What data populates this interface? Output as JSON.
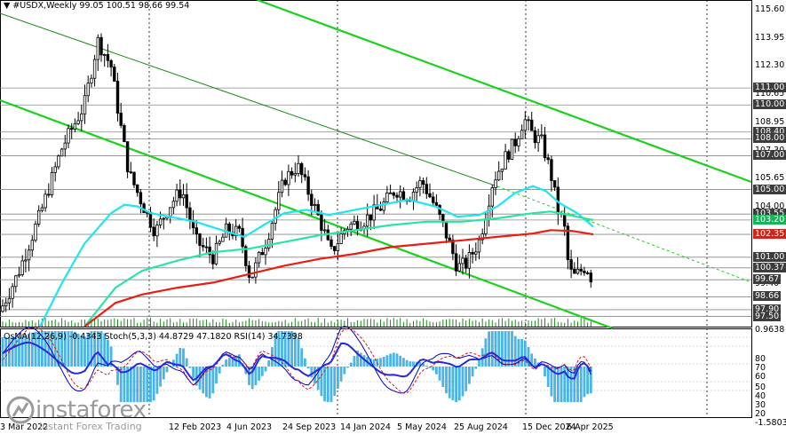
{
  "header": {
    "symbol_line": "▼ #USDX,Weekly  99.05 100.51 98.66 99.54"
  },
  "price_axis": {
    "labels": [
      "115.60",
      "113.95",
      "112.30",
      "110.65",
      "108.95",
      "107.30",
      "105.65",
      "104.00",
      "99.40"
    ],
    "levels": [
      {
        "value": "111.00",
        "style": "dark"
      },
      {
        "value": "110.00",
        "style": "dark"
      },
      {
        "value": "108.40",
        "style": "dark"
      },
      {
        "value": "108.00",
        "style": "dark"
      },
      {
        "value": "107.00",
        "style": "dark"
      },
      {
        "value": "105.00",
        "style": "dark"
      },
      {
        "value": "103.55",
        "style": "dark"
      },
      {
        "value": "103.20",
        "style": "grn"
      },
      {
        "value": "102.35",
        "style": "red"
      },
      {
        "value": "101.00",
        "style": "dark"
      },
      {
        "value": "100.37",
        "style": "dark"
      },
      {
        "value": "99.67",
        "style": "dark"
      },
      {
        "value": "98.66",
        "style": "dark"
      },
      {
        "value": "97.90",
        "style": "dark"
      },
      {
        "value": "97.50",
        "style": "dark"
      }
    ]
  },
  "time_axis": {
    "labels": [
      "13 Mar 2022",
      "12 Feb 2023",
      "4 Jun 2023",
      "24 Sep 2023",
      "14 Jan 2024",
      "5 May 2024",
      "25 Aug 2024",
      "15 Dec 2024",
      "6 Apr 2025"
    ]
  },
  "oscillator": {
    "title": "OsMA(12,26,9) -0.4343  Stoch(5,3,3) 44.8729 47.1820  RSI(14) 34.7398",
    "axis_labels": [
      "0.9638",
      "80",
      "70",
      "60",
      "50",
      "40",
      "30",
      "20",
      "-1.5803"
    ]
  },
  "logo": {
    "brand": "instaforex",
    "tagline": "Instant Forex Trading"
  },
  "colors": {
    "candle": "#000000",
    "trend_line": "#19d219",
    "ma_cyan": "#1ee6f0",
    "ma_green": "#28e6a0",
    "ma_red": "#e61e14",
    "osma": "#4ab4e6",
    "stoch_main": "#0000c8",
    "stoch_signal": "#c81e1e",
    "rsi": "#2828dc"
  }
}
